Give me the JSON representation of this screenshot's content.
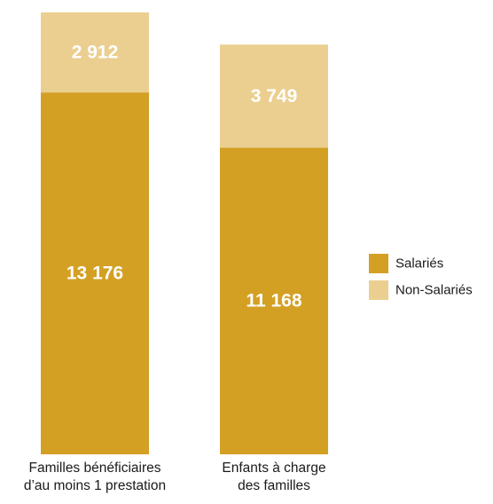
{
  "chart_data": {
    "type": "bar",
    "stacked": true,
    "categories": [
      [
        "Familles bénéficiaires",
        "d’au moins 1 prestation"
      ],
      [
        "Enfants à charge",
        "des familles"
      ]
    ],
    "series": [
      {
        "name": "Salariés",
        "values": [
          13176,
          11168
        ],
        "labels": [
          "13 176",
          "11 168"
        ],
        "color": "#d4a024"
      },
      {
        "name": "Non-Salariés",
        "values": [
          2912,
          3749
        ],
        "labels": [
          "2 912",
          "3 749"
        ],
        "color": "#ebcf90"
      }
    ],
    "title": "",
    "xlabel": "",
    "ylabel": "",
    "grid": false,
    "legend": "right"
  }
}
